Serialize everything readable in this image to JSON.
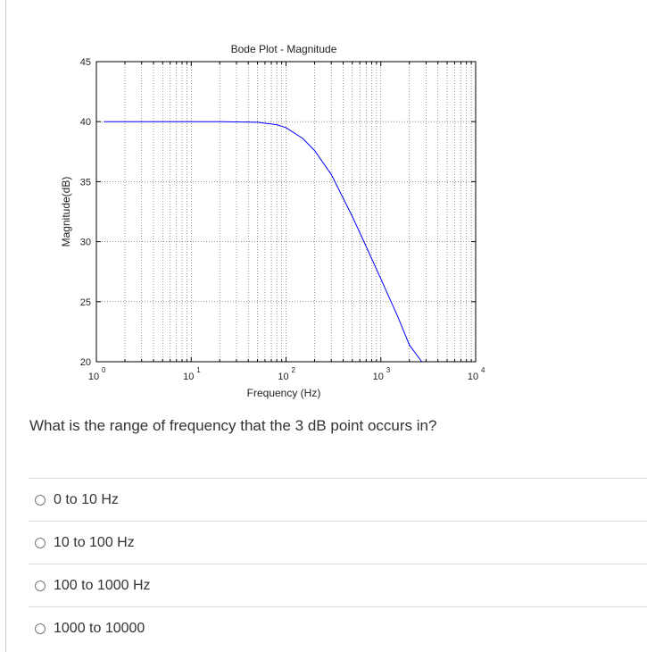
{
  "chart_data": {
    "type": "line",
    "title": "Bode Plot - Magnitude",
    "xlabel": "Frequency (Hz)",
    "ylabel": "Magnitude(dB)",
    "x_scale": "log",
    "xlim": [
      1,
      10000
    ],
    "ylim": [
      20,
      45
    ],
    "x_ticks": [
      {
        "value": 1,
        "base": "10",
        "exp": "0"
      },
      {
        "value": 10,
        "base": "10",
        "exp": "1"
      },
      {
        "value": 100,
        "base": "10",
        "exp": "2"
      },
      {
        "value": 1000,
        "base": "10",
        "exp": "3"
      },
      {
        "value": 10000,
        "base": "10",
        "exp": "4"
      }
    ],
    "y_ticks": [
      "20",
      "25",
      "30",
      "35",
      "40",
      "45"
    ],
    "grid": true,
    "line_color": "#0000ff",
    "series": [
      {
        "x": [
          1.2,
          2,
          5,
          10,
          20,
          50,
          80,
          100,
          150,
          200,
          300,
          500,
          700,
          1000,
          1500,
          2000,
          2700
        ],
        "values": [
          40,
          40,
          40,
          40,
          40,
          39.95,
          39.75,
          39.5,
          38.6,
          37.6,
          35.6,
          32.1,
          29.6,
          26.9,
          23.8,
          21.4,
          20
        ]
      }
    ]
  },
  "question": {
    "text": "What is the range of frequency that the 3 dB point occurs in?"
  },
  "options": [
    {
      "label": "0 to 10 Hz"
    },
    {
      "label": "10 to 100 Hz"
    },
    {
      "label": "100 to 1000 Hz"
    },
    {
      "label": "1000 to 10000"
    }
  ]
}
